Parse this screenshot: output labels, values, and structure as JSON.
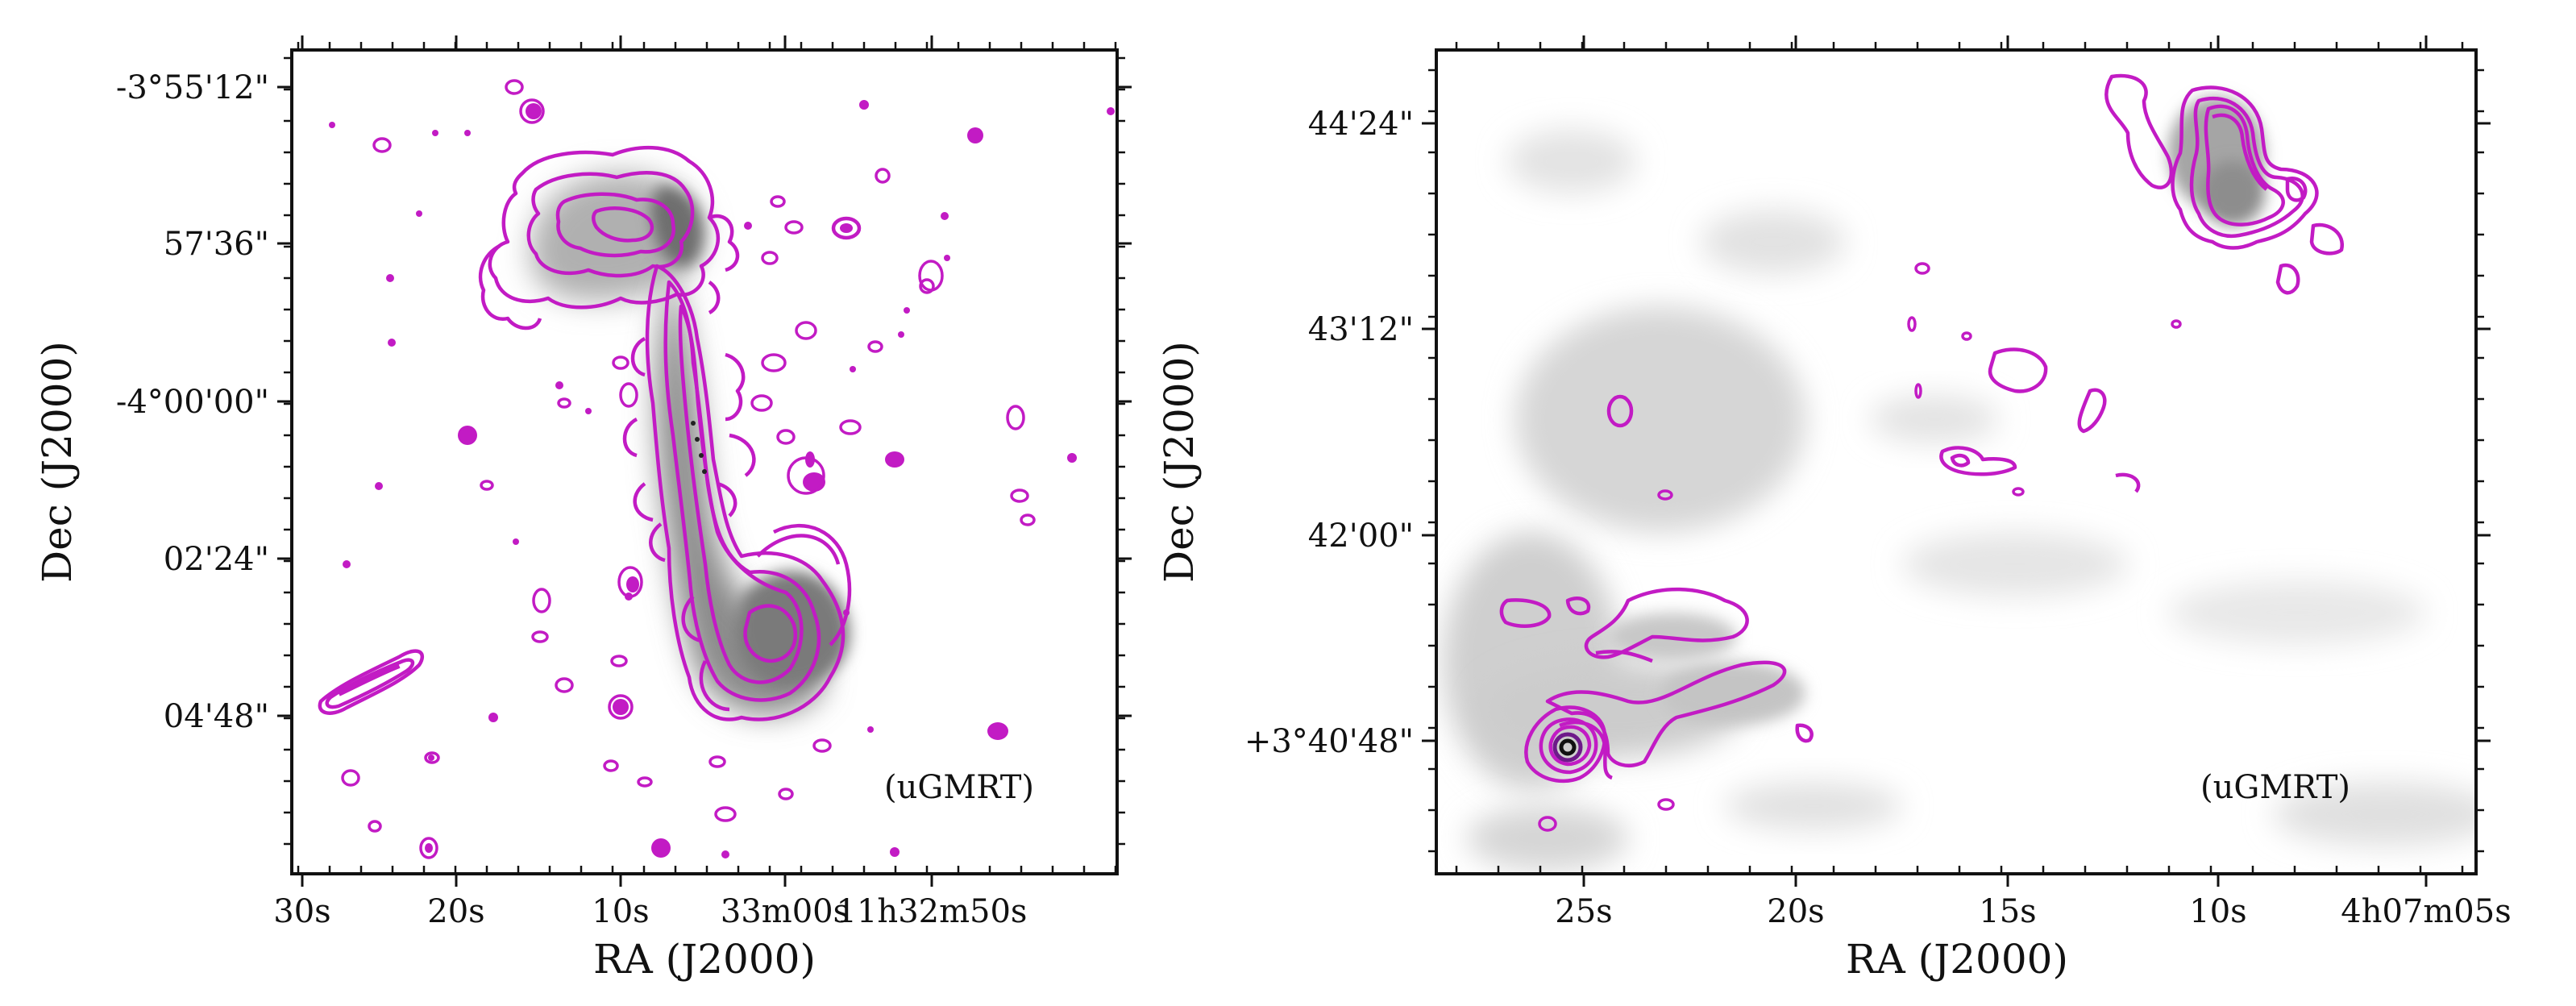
{
  "figure": {
    "panels_count": 2
  },
  "chart_data": [
    {
      "type": "contour-image",
      "title": "",
      "xlabel": "RA (J2000)",
      "ylabel": "Dec (J2000)",
      "annotation": "(uGMRT)",
      "x_ticks": [
        "30s",
        "20s",
        "10s",
        "33m00s",
        "11h32m50s"
      ],
      "y_ticks": [
        "-3°55'12\"",
        "57'36\"",
        "-4°00'00\"",
        "02'24\"",
        "04'48\""
      ],
      "contour_color": "#c21bc4",
      "image_colormap": "greys"
    },
    {
      "type": "contour-image",
      "title": "",
      "xlabel": "RA (J2000)",
      "ylabel": "Dec (J2000)",
      "annotation": "(uGMRT)",
      "x_ticks": [
        "25s",
        "20s",
        "15s",
        "10s",
        "4h07m05s"
      ],
      "y_ticks": [
        "44'24\"",
        "43'12\"",
        "42'00\"",
        "+3°40'48\""
      ],
      "contour_color": "#c21bc4",
      "image_colormap": "greys"
    }
  ]
}
